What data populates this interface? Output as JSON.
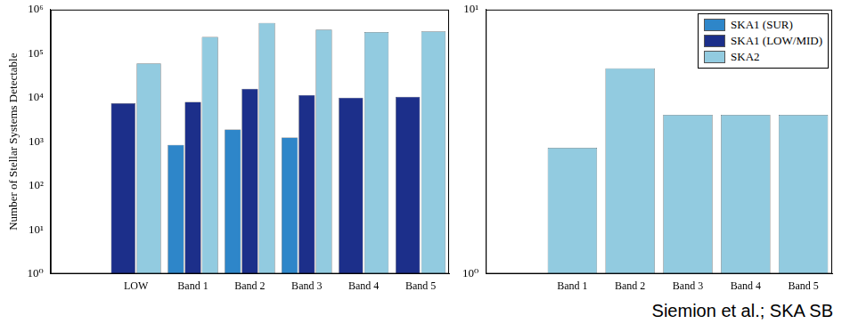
{
  "chart_data": [
    {
      "type": "bar",
      "log": "y",
      "grid": false,
      "ylabel": "Number of Stellar Systems Detectable",
      "categories": [
        null,
        "LOW",
        "Band 1",
        "Band 2",
        "Band 3",
        "Band 4",
        "Band 5"
      ],
      "series": [
        {
          "name": "SKA1 (SUR)",
          "color": "#2e86c9",
          "values": [
            null,
            null,
            850,
            1900,
            1250,
            null,
            null
          ]
        },
        {
          "name": "SKA1 (LOW/MID)",
          "color": "#1c2f8a",
          "values": [
            null,
            7500,
            8000,
            16000,
            11500,
            10000,
            10500
          ]
        },
        {
          "name": "SKA2",
          "color": "#92cbe0",
          "values": [
            null,
            60000,
            240000,
            500000,
            350000,
            310000,
            320000
          ]
        }
      ],
      "ylim": [
        1,
        1000000
      ],
      "yticks": [
        {
          "value": 1,
          "label": "10⁰"
        },
        {
          "value": 10,
          "label": "10¹"
        },
        {
          "value": 100,
          "label": "10²"
        },
        {
          "value": 1000,
          "label": "10³"
        },
        {
          "value": 10000,
          "label": "10⁴"
        },
        {
          "value": 100000,
          "label": "10⁵"
        },
        {
          "value": 1000000,
          "label": "10⁶"
        }
      ]
    },
    {
      "type": "bar",
      "log": "y",
      "grid": false,
      "legend": "top-right",
      "annotation": "Siemion et al.; SKA SB",
      "categories": [
        null,
        "Band 1",
        "Band 2",
        "Band 3",
        "Band 4",
        "Band 5"
      ],
      "series": [
        {
          "name": "SKA1 (SUR)",
          "color": "#2e86c9",
          "values": [
            null,
            null,
            null,
            null,
            null,
            null
          ]
        },
        {
          "name": "SKA1 (LOW/MID)",
          "color": "#1c2f8a",
          "values": [
            null,
            null,
            null,
            null,
            null,
            null
          ]
        },
        {
          "name": "SKA2",
          "color": "#92cbe0",
          "values": [
            null,
            3,
            6,
            4,
            4,
            4
          ]
        }
      ],
      "ylim": [
        1,
        10
      ],
      "yticks": [
        {
          "value": 1,
          "label": "10⁰"
        },
        {
          "value": 10,
          "label": "10¹"
        }
      ]
    }
  ]
}
